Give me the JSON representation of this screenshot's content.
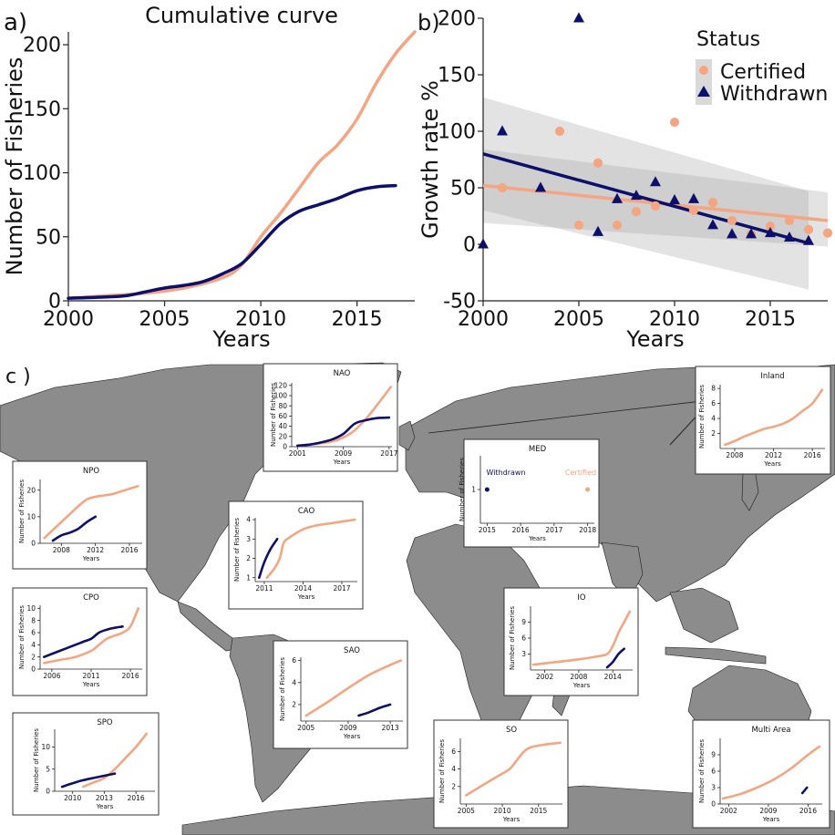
{
  "colors": {
    "certified": "#f4a582",
    "withdrawn": "#0d0f6b",
    "land": "#8c8c8c",
    "band": "#d4d4d4"
  },
  "panel_labels": {
    "a": "a)",
    "b": "b)",
    "c": "c )"
  },
  "chart_data": [
    {
      "id": "a",
      "type": "line",
      "title": "Cumulative curve",
      "xlabel": "Years",
      "ylabel": "Number of Fisheries",
      "xlim": [
        2000,
        2018
      ],
      "ylim": [
        0,
        210
      ],
      "xticks": [
        2000,
        2005,
        2010,
        2015
      ],
      "yticks": [
        0,
        50,
        100,
        150,
        200
      ],
      "series": [
        {
          "name": "Certified",
          "x": [
            2000,
            2002,
            2004,
            2006,
            2008,
            2009,
            2010,
            2011,
            2012,
            2013,
            2014,
            2015,
            2016,
            2017,
            2018
          ],
          "y": [
            2,
            4,
            6,
            10,
            18,
            28,
            50,
            68,
            88,
            108,
            122,
            142,
            170,
            193,
            210
          ]
        },
        {
          "name": "Withdrawn",
          "x": [
            2000,
            2002,
            2003,
            2004,
            2005,
            2006,
            2007,
            2008,
            2009,
            2010,
            2011,
            2012,
            2013,
            2014,
            2015,
            2016,
            2017
          ],
          "y": [
            2,
            3,
            4,
            7,
            10,
            12,
            15,
            21,
            29,
            44,
            60,
            70,
            75,
            80,
            86,
            89,
            90
          ]
        }
      ]
    },
    {
      "id": "b",
      "type": "scatter",
      "xlabel": "Years",
      "ylabel": "Growth rate %",
      "xlim": [
        2000,
        2018
      ],
      "ylim": [
        -50,
        200
      ],
      "xticks": [
        2000,
        2005,
        2010,
        2015
      ],
      "yticks": [
        -50,
        0,
        50,
        100,
        150,
        200
      ],
      "legend": {
        "title": "Status",
        "entries": [
          "Certified",
          "Withdrawn"
        ],
        "position": "top-right"
      },
      "series": [
        {
          "name": "Certified",
          "marker": "circle",
          "x": [
            2001,
            2004,
            2005,
            2006,
            2007,
            2008,
            2009,
            2010,
            2011,
            2012,
            2013,
            2014,
            2015,
            2016,
            2017,
            2018
          ],
          "y": [
            50,
            100,
            17,
            72,
            17,
            29,
            34,
            108,
            30,
            37,
            21,
            9,
            16,
            21,
            13,
            10
          ]
        },
        {
          "name": "Withdrawn",
          "marker": "triangle",
          "x": [
            2000,
            2001,
            2003,
            2005,
            2006,
            2007,
            2008,
            2009,
            2010,
            2011,
            2012,
            2013,
            2014,
            2015,
            2016,
            2017
          ],
          "y": [
            0,
            100,
            50,
            200,
            11,
            40,
            43,
            55,
            39,
            40,
            17,
            9,
            9,
            10,
            6,
            3
          ]
        }
      ],
      "fits": [
        {
          "name": "Certified",
          "x": [
            2000,
            2018
          ],
          "y": [
            52,
            21
          ],
          "ci_low": [
            19,
            -2
          ],
          "ci_high": [
            84,
            46
          ]
        },
        {
          "name": "Withdrawn",
          "x": [
            2000,
            2017
          ],
          "y": [
            80,
            1
          ],
          "ci_low": [
            30,
            -40
          ],
          "ci_high": [
            130,
            47
          ]
        }
      ]
    },
    {
      "id": "NAO",
      "type": "line",
      "title": "NAO",
      "xlabel": "Years",
      "ylabel": "Number of Fisheries",
      "xlim": [
        2000,
        2017.5
      ],
      "ylim": [
        0,
        125
      ],
      "xticks": [
        2001,
        2009,
        2017
      ],
      "yticks": [
        0,
        20,
        40,
        60,
        80,
        100,
        120
      ],
      "series": [
        {
          "name": "Certified",
          "x": [
            2001,
            2004,
            2007,
            2009,
            2011,
            2013,
            2015,
            2017.3
          ],
          "y": [
            2,
            5,
            10,
            18,
            32,
            55,
            83,
            117
          ]
        },
        {
          "name": "Withdrawn",
          "x": [
            2001,
            2003,
            2005,
            2007,
            2009,
            2011,
            2013,
            2015,
            2017
          ],
          "y": [
            2,
            4,
            8,
            14,
            25,
            45,
            52,
            56,
            57
          ]
        }
      ]
    },
    {
      "id": "Inland",
      "type": "line",
      "title": "Inland",
      "xlabel": "Years",
      "ylabel": "Number of Fisheries",
      "xlim": [
        2006.5,
        2017.3
      ],
      "ylim": [
        0,
        8.5
      ],
      "xticks": [
        2008,
        2012,
        2016
      ],
      "yticks": [
        2,
        4,
        6,
        8
      ],
      "series": [
        {
          "name": "Certified",
          "x": [
            2007,
            2008,
            2009,
            2010,
            2011,
            2012,
            2013,
            2014,
            2015,
            2016,
            2017
          ],
          "y": [
            0.5,
            1.0,
            1.6,
            2.1,
            2.6,
            2.9,
            3.3,
            4.0,
            5.0,
            6.0,
            7.8
          ]
        }
      ]
    },
    {
      "id": "NPO",
      "type": "line",
      "title": "NPO",
      "xlabel": "Years",
      "ylabel": "Number of Fisheries",
      "xlim": [
        2005.5,
        2017.5
      ],
      "ylim": [
        0,
        24
      ],
      "xticks": [
        2008,
        2012,
        2016
      ],
      "yticks": [
        0,
        10,
        20
      ],
      "series": [
        {
          "name": "Certified",
          "x": [
            2006,
            2007,
            2008,
            2009,
            2010,
            2011,
            2012,
            2013,
            2014,
            2015,
            2016,
            2017
          ],
          "y": [
            2,
            5,
            8,
            11,
            14,
            16.5,
            17.5,
            18,
            18.5,
            19.5,
            20.5,
            21.5
          ]
        },
        {
          "name": "Withdrawn",
          "x": [
            2007,
            2008,
            2009,
            2010,
            2011,
            2012
          ],
          "y": [
            1,
            3,
            4,
            5.5,
            8,
            10
          ]
        }
      ]
    },
    {
      "id": "MED",
      "type": "scatter",
      "title": "MED",
      "xlabel": "Years",
      "ylabel": "Number of Fisheries",
      "xlim": [
        2014.8,
        2018.2
      ],
      "ylim": [
        0.5,
        1.5
      ],
      "xticks": [
        2015,
        2016,
        2017,
        2018
      ],
      "yticks": [
        1
      ],
      "annotations": [
        "Withdrawn",
        "Certified"
      ],
      "series": [
        {
          "name": "Withdrawn",
          "x": [
            2015
          ],
          "y": [
            1
          ]
        },
        {
          "name": "Certified",
          "x": [
            2018
          ],
          "y": [
            1
          ]
        }
      ]
    },
    {
      "id": "CAO",
      "type": "line",
      "title": "CAO",
      "xlabel": "Years",
      "ylabel": "Number of Fisheries",
      "xlim": [
        2010.3,
        2018.2
      ],
      "ylim": [
        0.8,
        4.1
      ],
      "xticks": [
        2011,
        2014,
        2017
      ],
      "yticks": [
        1,
        2,
        3,
        4
      ],
      "series": [
        {
          "name": "Certified",
          "x": [
            2011.2,
            2011.8,
            2012.2,
            2012.5,
            2013,
            2014,
            2015,
            2016,
            2017,
            2018
          ],
          "y": [
            1,
            1.5,
            2,
            2.8,
            3.1,
            3.5,
            3.7,
            3.8,
            3.9,
            4.0
          ]
        },
        {
          "name": "Withdrawn",
          "x": [
            2010.6,
            2011,
            2011.5,
            2012
          ],
          "y": [
            1,
            1.8,
            2.5,
            3
          ]
        }
      ]
    },
    {
      "id": "CPO",
      "type": "line",
      "title": "CPO",
      "xlabel": "Years",
      "ylabel": "Number of Fisheries",
      "xlim": [
        2004.5,
        2017.5
      ],
      "ylim": [
        0,
        10.5
      ],
      "xticks": [
        2006,
        2011,
        2016
      ],
      "yticks": [
        0,
        2,
        4,
        6,
        8,
        10
      ],
      "series": [
        {
          "name": "Certified",
          "x": [
            2005,
            2007,
            2009,
            2011,
            2012,
            2013,
            2014,
            2015,
            2016,
            2017
          ],
          "y": [
            1,
            1.5,
            2,
            3,
            4,
            5,
            5.5,
            6,
            7,
            10
          ]
        },
        {
          "name": "Withdrawn",
          "x": [
            2005,
            2007,
            2009,
            2010,
            2011,
            2012,
            2013,
            2014,
            2015
          ],
          "y": [
            2,
            3,
            4,
            4.5,
            5,
            6,
            6.5,
            6.8,
            7
          ]
        }
      ]
    },
    {
      "id": "IO",
      "type": "line",
      "title": "IO",
      "xlabel": "Years",
      "ylabel": "Number of Fisheries",
      "xlim": [
        1999.5,
        2017.5
      ],
      "ylim": [
        0,
        12
      ],
      "xticks": [
        2002,
        2008,
        2014
      ],
      "yticks": [
        3,
        6,
        9
      ],
      "series": [
        {
          "name": "Certified",
          "x": [
            2000,
            2004,
            2008,
            2011,
            2013,
            2014,
            2015,
            2016,
            2017
          ],
          "y": [
            1,
            1.5,
            2,
            2.5,
            3,
            4.5,
            7,
            9,
            11
          ]
        },
        {
          "name": "Withdrawn",
          "x": [
            2013,
            2014,
            2015,
            2016
          ],
          "y": [
            0.5,
            1.5,
            3,
            4
          ]
        }
      ]
    },
    {
      "id": "SAO",
      "type": "line",
      "title": "SAO",
      "xlabel": "Years",
      "ylabel": "Number of Fisheries",
      "xlim": [
        2004.5,
        2014.2
      ],
      "ylim": [
        0.5,
        6.3
      ],
      "xticks": [
        2005,
        2009,
        2013
      ],
      "yticks": [
        2,
        4,
        6
      ],
      "series": [
        {
          "name": "Certified",
          "x": [
            2005,
            2007,
            2009,
            2011,
            2013,
            2014
          ],
          "y": [
            1,
            2.2,
            3.5,
            4.7,
            5.6,
            6
          ]
        },
        {
          "name": "Withdrawn",
          "x": [
            2010,
            2011,
            2012,
            2013
          ],
          "y": [
            1,
            1.3,
            1.7,
            2
          ]
        }
      ]
    },
    {
      "id": "SPO",
      "type": "line",
      "title": "SPO",
      "xlabel": "Years",
      "ylabel": "Number of Fisheries",
      "xlim": [
        2008.3,
        2017.8
      ],
      "ylim": [
        0,
        14
      ],
      "xticks": [
        2010,
        2013,
        2016
      ],
      "yticks": [
        0,
        5,
        10
      ],
      "series": [
        {
          "name": "Certified",
          "x": [
            2011,
            2012,
            2013,
            2014,
            2015,
            2016,
            2017
          ],
          "y": [
            1,
            2,
            3,
            5,
            7.5,
            10,
            13
          ]
        },
        {
          "name": "Withdrawn",
          "x": [
            2009,
            2010,
            2011,
            2012,
            2013,
            2014
          ],
          "y": [
            1,
            1.8,
            2.5,
            3,
            3.5,
            4
          ]
        }
      ]
    },
    {
      "id": "SO",
      "type": "line",
      "title": "SO",
      "xlabel": "Years",
      "ylabel": "Number of Fisheries",
      "xlim": [
        2004.2,
        2018.3
      ],
      "ylim": [
        0,
        7.5
      ],
      "xticks": [
        2005,
        2010,
        2015
      ],
      "yticks": [
        2,
        4,
        6
      ],
      "series": [
        {
          "name": "Certified",
          "x": [
            2005,
            2007,
            2009,
            2011,
            2012,
            2013,
            2014,
            2016,
            2018
          ],
          "y": [
            1,
            2,
            3,
            4,
            5,
            6,
            6.5,
            6.8,
            7
          ]
        }
      ]
    },
    {
      "id": "Multi Area",
      "type": "line",
      "title": "Multi Area",
      "xlabel": "Years",
      "ylabel": "Number of Fisheries",
      "xlim": [
        2000.5,
        2018.5
      ],
      "ylim": [
        0,
        12
      ],
      "xticks": [
        2002,
        2009,
        2016
      ],
      "yticks": [
        0,
        3,
        6,
        9
      ],
      "series": [
        {
          "name": "Certified",
          "x": [
            2001,
            2004,
            2007,
            2010,
            2013,
            2016,
            2018
          ],
          "y": [
            1,
            1.8,
            3,
            4.5,
            6.5,
            9,
            10.5
          ]
        },
        {
          "name": "Withdrawn",
          "x": [
            2015,
            2015.8
          ],
          "y": [
            2,
            3
          ]
        }
      ]
    }
  ]
}
